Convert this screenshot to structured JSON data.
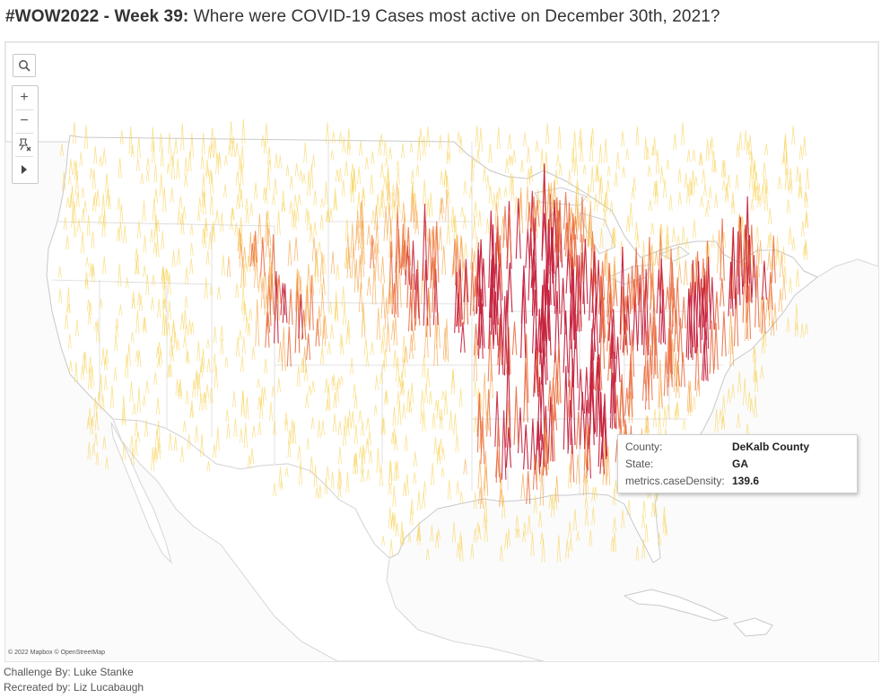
{
  "title": {
    "prefix": "#WOW2022 - Week 39:",
    "text": "Where were COVID-19 Cases most active on December 30th, 2021?"
  },
  "map": {
    "attribution": "© 2022 Mapbox © OpenStreetMap",
    "land_color": "#ffffff",
    "water_color": "#fbfbfb",
    "border_color": "#c9c9c9",
    "spike_palette": [
      "#f8d35a",
      "#f5a649",
      "#ea6b3d",
      "#c7243f"
    ],
    "spike_metric": "metrics.caseDensity",
    "spike_date": "December 30th, 2021"
  },
  "toolbar": {
    "search_icon": "search-icon",
    "zoom_in_label": "+",
    "zoom_out_label": "−",
    "pin_icon": "pin-reset-icon",
    "expand_icon": "play-icon"
  },
  "tooltip": {
    "county_label": "County:",
    "county_value": "DeKalb County",
    "state_label": "State:",
    "state_value": "GA",
    "metric_label": "metrics.caseDensity:",
    "metric_value": "139.6"
  },
  "credits": {
    "challenge": "Challenge By: Luke Stanke",
    "recreated": "Recreated by: Liz Lucabaugh"
  }
}
